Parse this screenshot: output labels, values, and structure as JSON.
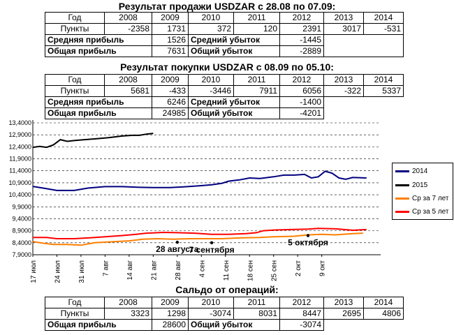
{
  "sell": {
    "title": "Результат продажи USDZAR с 28.08 по 07.09:",
    "header": [
      "Год",
      "2008",
      "2009",
      "2010",
      "2011",
      "2012",
      "2013",
      "2014"
    ],
    "points_label": "Пункты",
    "points": [
      "-2358",
      "1731",
      "372",
      "120",
      "2391",
      "3017",
      "-531"
    ],
    "avg_profit_label": "Средняя прибыль",
    "avg_profit": "1526",
    "avg_loss_label": "Средний убыток",
    "avg_loss": "-1445",
    "total_profit_label": "Общая прибыль",
    "total_profit": "7631",
    "total_loss_label": "Общий убыток",
    "total_loss": "-2889"
  },
  "buy": {
    "title": "Результат покупки USDZAR с 08.09 по 05.10:",
    "header": [
      "Год",
      "2008",
      "2009",
      "2010",
      "2011",
      "2012",
      "2013",
      "2014"
    ],
    "points_label": "Пункты",
    "points": [
      "5681",
      "-433",
      "-3446",
      "7911",
      "6056",
      "-322",
      "5337"
    ],
    "avg_profit_label": "Средняя прибыль",
    "avg_profit": "6246",
    "avg_loss_label": "Средний убыток",
    "avg_loss": "-1400",
    "total_profit_label": "Общая прибыль",
    "total_profit": "24985",
    "total_loss_label": "Общий убыток",
    "total_loss": "-4201"
  },
  "saldo": {
    "title": "Сальдо от операций:",
    "header": [
      "Год",
      "2008",
      "2009",
      "2010",
      "2011",
      "2012",
      "2013",
      "2014"
    ],
    "points_label": "Пункты",
    "points": [
      "3323",
      "1298",
      "-3074",
      "8031",
      "8447",
      "2695",
      "4806"
    ],
    "total_profit_label": "Общая прибыль",
    "total_profit": "28600",
    "total_loss_label": "Общий убыток",
    "total_loss": "-3074"
  },
  "chart_data": {
    "type": "line",
    "ylim": [
      7.9,
      13.4
    ],
    "y_ticks": [
      "13,4000",
      "12,9000",
      "12,4000",
      "11,9000",
      "11,4000",
      "10,9000",
      "10,4000",
      "9,9000",
      "9,4000",
      "8,9000",
      "8,4000",
      "7,9000"
    ],
    "x_days": 90,
    "x_ticks": [
      {
        "label": "17 июл",
        "day": 0
      },
      {
        "label": "24 июл",
        "day": 7
      },
      {
        "label": "31 июл",
        "day": 14
      },
      {
        "label": "7 авг",
        "day": 21
      },
      {
        "label": "14 авг",
        "day": 28
      },
      {
        "label": "21 авг",
        "day": 35
      },
      {
        "label": "28 авг",
        "day": 42
      },
      {
        "label": "4 сен",
        "day": 49
      },
      {
        "label": "11 сен",
        "day": 56
      },
      {
        "label": "18 сен",
        "day": 63
      },
      {
        "label": "25 сен",
        "day": 70
      },
      {
        "label": "2 окт",
        "day": 77
      },
      {
        "label": "9 окт",
        "day": 84
      }
    ],
    "grid": true,
    "legend_position": "right",
    "series": [
      {
        "name": "2014",
        "color": "#00007f",
        "points": [
          [
            0,
            10.75
          ],
          [
            3,
            10.68
          ],
          [
            7,
            10.58
          ],
          [
            12,
            10.58
          ],
          [
            16,
            10.68
          ],
          [
            21,
            10.74
          ],
          [
            26,
            10.74
          ],
          [
            31,
            10.71
          ],
          [
            35,
            10.7
          ],
          [
            40,
            10.7
          ],
          [
            45,
            10.74
          ],
          [
            49,
            10.78
          ],
          [
            52,
            10.82
          ],
          [
            55,
            10.88
          ],
          [
            57,
            10.97
          ],
          [
            60,
            11.02
          ],
          [
            63,
            11.1
          ],
          [
            66,
            11.08
          ],
          [
            70,
            11.15
          ],
          [
            73,
            11.22
          ],
          [
            76,
            11.22
          ],
          [
            79,
            11.25
          ],
          [
            81,
            11.1
          ],
          [
            83,
            11.15
          ],
          [
            85,
            11.38
          ],
          [
            87,
            11.3
          ],
          [
            89,
            11.1
          ],
          [
            91,
            11.05
          ],
          [
            93,
            11.12
          ],
          [
            97,
            11.1
          ]
        ]
      },
      {
        "name": "2015",
        "color": "#000000",
        "points": [
          [
            0,
            12.38
          ],
          [
            2,
            12.42
          ],
          [
            4,
            12.38
          ],
          [
            6,
            12.48
          ],
          [
            8,
            12.7
          ],
          [
            10,
            12.63
          ],
          [
            12,
            12.66
          ],
          [
            15,
            12.7
          ],
          [
            18,
            12.73
          ],
          [
            22,
            12.78
          ],
          [
            26,
            12.85
          ],
          [
            29,
            12.88
          ],
          [
            31,
            12.88
          ],
          [
            33,
            12.93
          ],
          [
            35,
            12.96
          ]
        ]
      },
      {
        "name": "Ср за 7 лет",
        "color": "#ff7f00",
        "points": [
          [
            0,
            8.45
          ],
          [
            3,
            8.38
          ],
          [
            6,
            8.33
          ],
          [
            10,
            8.33
          ],
          [
            14,
            8.3
          ],
          [
            18,
            8.4
          ],
          [
            24,
            8.45
          ],
          [
            28,
            8.48
          ],
          [
            32,
            8.55
          ],
          [
            36,
            8.57
          ],
          [
            41,
            8.55
          ],
          [
            46,
            8.57
          ],
          [
            50,
            8.57
          ],
          [
            55,
            8.57
          ],
          [
            60,
            8.6
          ],
          [
            66,
            8.62
          ],
          [
            70,
            8.65
          ],
          [
            76,
            8.67
          ],
          [
            80,
            8.73
          ],
          [
            84,
            8.75
          ],
          [
            88,
            8.73
          ],
          [
            93,
            8.78
          ],
          [
            96,
            8.8
          ]
        ]
      },
      {
        "name": "Ср за 5 лет",
        "color": "#ff0000",
        "points": [
          [
            0,
            8.62
          ],
          [
            4,
            8.62
          ],
          [
            7,
            8.57
          ],
          [
            12,
            8.57
          ],
          [
            16,
            8.6
          ],
          [
            21,
            8.65
          ],
          [
            26,
            8.7
          ],
          [
            30,
            8.75
          ],
          [
            33,
            8.8
          ],
          [
            38,
            8.83
          ],
          [
            42,
            8.82
          ],
          [
            47,
            8.8
          ],
          [
            52,
            8.75
          ],
          [
            57,
            8.75
          ],
          [
            62,
            8.78
          ],
          [
            65,
            8.82
          ],
          [
            67,
            8.9
          ],
          [
            70,
            8.93
          ],
          [
            75,
            8.95
          ],
          [
            80,
            8.97
          ],
          [
            83,
            9.0
          ],
          [
            88,
            8.98
          ],
          [
            93,
            8.92
          ],
          [
            97,
            8.95
          ]
        ]
      }
    ],
    "annotations": [
      {
        "label": "28 августа",
        "day": 42,
        "y": 8.42
      },
      {
        "label": "7 сентября",
        "day": 52,
        "y": 8.4
      },
      {
        "label": "5 октября",
        "day": 80,
        "y": 8.7
      }
    ]
  }
}
